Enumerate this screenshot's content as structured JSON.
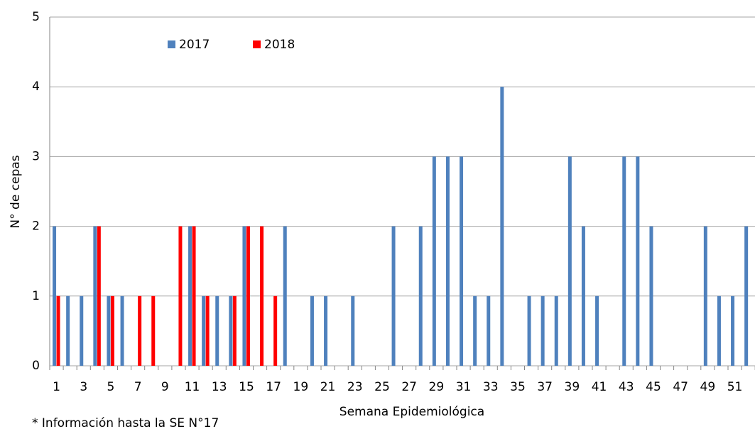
{
  "chart_data": {
    "type": "bar",
    "y_label": "N° de cepas",
    "x_label": "Semana Epidemiológica",
    "footnote": "* Información hasta la SE N°17",
    "categories": [
      1,
      null,
      3,
      null,
      5,
      null,
      7,
      null,
      9,
      null,
      11,
      null,
      13,
      null,
      15,
      null,
      17,
      null,
      19,
      null,
      21,
      null,
      23,
      null,
      25,
      null,
      27,
      null,
      29,
      null,
      31,
      null,
      33,
      null,
      35,
      null,
      37,
      null,
      39,
      null,
      41,
      null,
      43,
      null,
      45,
      null,
      47,
      null,
      49,
      null,
      51,
      null
    ],
    "series": [
      {
        "name": "2017",
        "color": "#4f81bd",
        "values": [
          2,
          1,
          1,
          2,
          1,
          1,
          0,
          0,
          0,
          0,
          2,
          1,
          1,
          1,
          2,
          0,
          0,
          2,
          0,
          1,
          1,
          0,
          1,
          0,
          0,
          2,
          0,
          2,
          3,
          3,
          3,
          1,
          1,
          4,
          0,
          1,
          1,
          1,
          3,
          2,
          1,
          0,
          3,
          3,
          2,
          0,
          0,
          0,
          2,
          1,
          1,
          2
        ]
      },
      {
        "name": "2018",
        "color": "#ff0000",
        "values": [
          1,
          0,
          0,
          2,
          1,
          0,
          1,
          1,
          0,
          2,
          2,
          1,
          0,
          1,
          2,
          2,
          1,
          null,
          null,
          null,
          null,
          null,
          null,
          null,
          null,
          null,
          null,
          null,
          null,
          null,
          null,
          null,
          null,
          null,
          null,
          null,
          null,
          null,
          null,
          null,
          null,
          null,
          null,
          null,
          null,
          null,
          null,
          null,
          null,
          null,
          null,
          null
        ]
      }
    ],
    "ylim": [
      0,
      5
    ],
    "yticks": [
      0,
      1,
      2,
      3,
      4,
      5
    ],
    "grid": true,
    "legend": "top-left"
  }
}
